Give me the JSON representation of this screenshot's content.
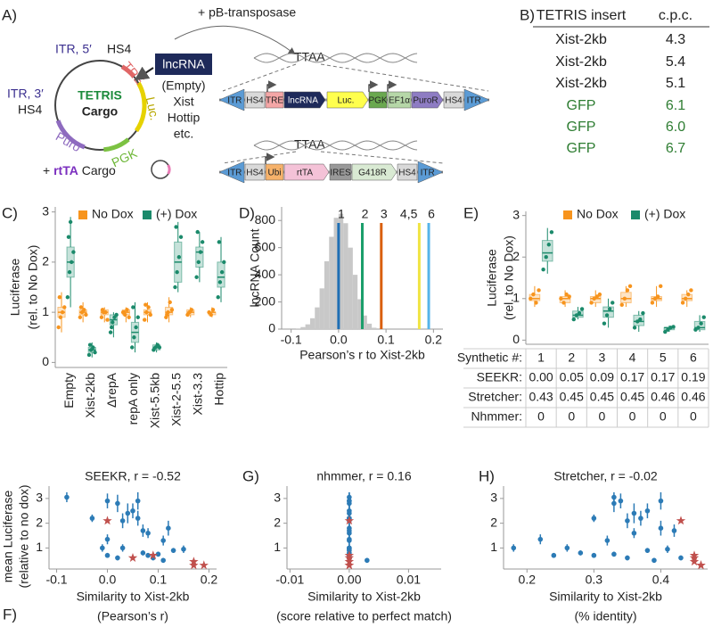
{
  "panel_a": {
    "label": "A)",
    "transposase": "+ pB-transposase",
    "plasmid": {
      "itr5": "ITR, 5′",
      "hs4_top": "HS4",
      "tre": "TRE",
      "tetris": "TETRIS",
      "cargo": "Cargo",
      "luc": "Luc.",
      "pgk": "PGK",
      "puro": "Puro",
      "itr3": "ITR, 3′",
      "hs4_left": "HS4"
    },
    "lncrna": "lncRNA",
    "inserts": [
      "(Empty)",
      "Xist",
      "Hottip",
      "etc."
    ],
    "rtta_cargo": {
      "plus": "+",
      "rtta": "rtTA",
      "cargo": "Cargo"
    },
    "ttaa": [
      "TTAA",
      "TTAA"
    ],
    "construct_1": [
      "ITR",
      "HS4",
      "TRE",
      "lncRNA",
      "Luc.",
      "PGK",
      "EF1α",
      "PuroR",
      "HS4",
      "ITR"
    ],
    "construct_2": [
      "ITR",
      "HS4",
      "Ubi",
      "rtTA",
      "IRES",
      "G418R",
      "HS4",
      "ITR"
    ]
  },
  "panel_b": {
    "label": "B)",
    "header": [
      "TETRIS insert",
      "c.p.c."
    ],
    "rows": [
      [
        "Xist-2kb",
        "4.3"
      ],
      [
        "Xist-2kb",
        "5.4"
      ],
      [
        "Xist-2kb",
        "5.1"
      ],
      [
        "GFP",
        "6.1"
      ],
      [
        "GFP",
        "6.0"
      ],
      [
        "GFP",
        "6.7"
      ]
    ]
  },
  "chart_data": [
    {
      "type": "box",
      "label": "C)",
      "ylabel": [
        "Luciferase",
        "(rel. to No Dox)"
      ],
      "categories": [
        "Empty",
        "Xist-2kb",
        "ΔrepA",
        "repA only",
        "Xist-5.5kb",
        "Xist-2-5.5",
        "Xist-3.3",
        "Hottip"
      ],
      "series": [
        {
          "name": "No Dox",
          "color": "#f7941d",
          "boxes": [
            [
              0.6,
              0.9,
              1.0,
              1.1,
              1.4
            ],
            [
              0.8,
              0.95,
              1.0,
              1.05,
              1.2
            ],
            [
              0.8,
              0.95,
              1.0,
              1.05,
              1.1
            ],
            [
              0.8,
              0.95,
              1.0,
              1.05,
              1.1
            ],
            [
              0.8,
              0.95,
              1.0,
              1.05,
              1.2
            ],
            [
              0.8,
              0.95,
              1.0,
              1.1,
              1.3
            ],
            [
              0.9,
              0.95,
              1.0,
              1.05,
              1.1
            ],
            [
              0.9,
              0.95,
              1.0,
              1.0,
              1.1
            ]
          ],
          "points": [
            [
              0.7,
              0.9,
              1.0,
              1.1,
              1.3
            ],
            [
              0.9,
              1.0,
              1.05,
              0.95,
              1.1
            ],
            [
              0.9,
              1.0,
              1.0,
              0.85,
              1.05
            ],
            [
              1.0,
              0.95,
              1.05,
              0.9,
              1.0
            ],
            [
              0.85,
              1.0,
              1.1,
              0.95,
              1.15
            ],
            [
              0.9,
              1.0,
              1.2,
              1.05,
              0.95
            ],
            [
              0.95,
              1.0,
              1.05
            ],
            [
              1.0,
              0.95,
              1.05
            ]
          ]
        },
        {
          "name": "(+) Dox",
          "color": "#1b8a6b",
          "boxes": [
            [
              1.1,
              1.7,
              2.0,
              2.3,
              2.9
            ],
            [
              0.1,
              0.2,
              0.25,
              0.3,
              0.4
            ],
            [
              0.5,
              0.75,
              0.85,
              0.95,
              1.0
            ],
            [
              0.2,
              0.4,
              0.6,
              0.8,
              1.2
            ],
            [
              0.2,
              0.25,
              0.3,
              0.35,
              0.4
            ],
            [
              1.4,
              1.6,
              2.0,
              2.4,
              2.8
            ],
            [
              1.6,
              1.9,
              2.2,
              2.3,
              2.6
            ],
            [
              1.2,
              1.5,
              1.7,
              2.0,
              2.5
            ]
          ],
          "points": [
            [
              1.3,
              1.8,
              2.0,
              2.2,
              2.5,
              2.8
            ],
            [
              0.15,
              0.25,
              0.3,
              0.2,
              0.35
            ],
            [
              0.6,
              0.8,
              0.9,
              0.95,
              0.7
            ],
            [
              0.3,
              0.5,
              0.7,
              0.9,
              1.1
            ],
            [
              0.25,
              0.3,
              0.35,
              0.3
            ],
            [
              1.5,
              1.8,
              2.1,
              2.5,
              2.7
            ],
            [
              1.7,
              2.0,
              2.2,
              2.4,
              2.6
            ],
            [
              1.3,
              1.6,
              1.8,
              2.0,
              2.4
            ]
          ]
        }
      ],
      "ylim": [
        -0.1,
        3.1
      ],
      "yticks": [
        0,
        1,
        2,
        3
      ]
    },
    {
      "type": "histogram",
      "label": "D)",
      "ylabel": "lncRNA Count",
      "xlabel": "Pearson’s r to Xist-2kb",
      "bins": [
        -0.09,
        -0.08,
        -0.07,
        -0.06,
        -0.05,
        -0.04,
        -0.03,
        -0.02,
        -0.01,
        0.0,
        0.01,
        0.02,
        0.03,
        0.04,
        0.05,
        0.06,
        0.07,
        0.08
      ],
      "counts": [
        5,
        15,
        35,
        80,
        160,
        300,
        500,
        680,
        820,
        850,
        780,
        600,
        400,
        220,
        100,
        40,
        10
      ],
      "color": "#c8c8c8",
      "markers": {
        "x": [
          0.0,
          0.05,
          0.09,
          0.17,
          0.19
        ],
        "labels": [
          "1",
          "2",
          "3",
          "4,5",
          "6"
        ],
        "colors": [
          "#1f6fb4",
          "#1b9e6b",
          "#d95f0e",
          "#f0e442",
          "#56b4e9"
        ]
      },
      "xlim": [
        -0.12,
        0.22
      ],
      "ylim": [
        0,
        900
      ],
      "xticks": [
        -0.1,
        {
          "value": 0.0,
          "label": "0.0"
        },
        0.1,
        0.2
      ],
      "yticks": [
        0,
        200,
        400,
        600,
        800
      ]
    },
    {
      "type": "box",
      "label": "E)",
      "ylabel": [
        "Luciferase",
        "(rel. to No Dox)"
      ],
      "categories": [
        "1",
        "2",
        "3",
        "4",
        "5",
        "6"
      ],
      "series": [
        {
          "name": "No Dox",
          "color": "#f7941d",
          "boxes": [
            [
              0.8,
              0.95,
              1.0,
              1.1,
              1.3
            ],
            [
              0.8,
              0.9,
              1.0,
              1.05,
              1.2
            ],
            [
              0.8,
              0.9,
              1.0,
              1.05,
              1.2
            ],
            [
              0.8,
              0.9,
              1.0,
              1.15,
              1.3
            ],
            [
              0.8,
              0.95,
              1.0,
              1.05,
              1.3
            ],
            [
              0.8,
              0.95,
              1.0,
              1.1,
              1.2
            ]
          ],
          "points": [
            [
              1.0,
              1.1,
              0.9,
              1.2
            ],
            [
              1.0,
              0.9,
              1.1,
              1.05
            ],
            [
              0.9,
              1.0,
              1.05,
              1.1
            ],
            [
              0.85,
              1.0,
              1.2,
              1.3
            ],
            [
              0.9,
              1.0,
              1.05,
              1.3
            ],
            [
              0.9,
              1.0,
              1.1,
              1.2
            ]
          ]
        },
        {
          "name": "(+) Dox",
          "color": "#1b8a6b",
          "boxes": [
            [
              1.6,
              1.9,
              2.1,
              2.4,
              2.7
            ],
            [
              0.5,
              0.55,
              0.6,
              0.7,
              0.8
            ],
            [
              0.3,
              0.55,
              0.7,
              0.8,
              1.0
            ],
            [
              0.2,
              0.35,
              0.45,
              0.6,
              0.7
            ],
            [
              0.2,
              0.25,
              0.3,
              0.3,
              0.35
            ],
            [
              0.2,
              0.25,
              0.3,
              0.45,
              0.6
            ]
          ],
          "points": [
            [
              1.7,
              2.0,
              2.3,
              2.6
            ],
            [
              0.5,
              0.6,
              0.65,
              0.75
            ],
            [
              0.4,
              0.6,
              0.75,
              0.9
            ],
            [
              0.3,
              0.45,
              0.5,
              0.65
            ],
            [
              0.2,
              0.25,
              0.3,
              0.32
            ],
            [
              0.25,
              0.3,
              0.4,
              0.55
            ]
          ]
        }
      ],
      "table": {
        "label": "Synthetic #:",
        "rows": [
          {
            "label": "SEEKR:",
            "values": [
              "0.00",
              "0.05",
              "0.09",
              "0.17",
              "0.17",
              "0.19"
            ]
          },
          {
            "label": "Stretcher:",
            "values": [
              "0.43",
              "0.45",
              "0.45",
              "0.45",
              "0.46",
              "0.46"
            ]
          },
          {
            "label": "Nhmmer:",
            "values": [
              "0",
              "0",
              "0",
              "0",
              "0",
              "0"
            ]
          }
        ]
      },
      "ylim": [
        -0.1,
        3.1
      ],
      "yticks": [
        0,
        1,
        2,
        3
      ]
    },
    {
      "type": "scatter",
      "label": "F)",
      "title": "SEEKR, r = -0.52",
      "ylabel": [
        "mean Luciferase",
        "(relative to no dox)"
      ],
      "xlabel": [
        "Similarity to Xist-2kb",
        "(Pearson’s r)"
      ],
      "x": [
        -0.08,
        -0.03,
        0.0,
        0.02,
        0.03,
        0.04,
        0.05,
        0.06,
        0.06,
        0.07,
        0.08,
        0.12,
        0.11,
        0.0,
        -0.01,
        0.03,
        0.07,
        0.08,
        0.1,
        0.13,
        0.15,
        0.02,
        0.09,
        0.0,
        0.11
      ],
      "y": [
        3.05,
        2.2,
        2.9,
        2.8,
        2.1,
        2.4,
        2.5,
        2.9,
        2.2,
        1.7,
        1.6,
        1.8,
        1.3,
        1.35,
        1.0,
        1.0,
        0.8,
        0.7,
        0.75,
        0.9,
        0.95,
        0.6,
        0.6,
        0.7,
        0.5
      ],
      "errors": [
        0.2,
        0.15,
        0.3,
        0.35,
        0.3,
        0.4,
        0.3,
        0.35,
        0.3,
        0.25,
        0.2,
        0.3,
        0.2,
        0.2,
        0.15,
        0.15,
        0.1,
        0.1,
        0.1,
        0.1,
        0.15,
        0.1,
        0.1,
        0.1,
        0.1
      ],
      "color": "#2c7bb6",
      "highlight": {
        "x": [
          0.0,
          0.05,
          0.09,
          0.17,
          0.17,
          0.19
        ],
        "y": [
          2.1,
          0.6,
          0.7,
          0.45,
          0.3,
          0.3
        ],
        "color": "#c0504d"
      },
      "xlim": [
        -0.115,
        0.215
      ],
      "ylim": [
        0.15,
        3.5
      ],
      "xticks": [
        -0.1,
        {
          "value": 0.0,
          "label": "0.0"
        },
        0.1,
        0.2
      ],
      "yticks": [
        1,
        2,
        3
      ]
    },
    {
      "type": "scatter",
      "label": "G)",
      "title": "nhmmer, r = 0.16",
      "xlabel": [
        "Similarity to Xist-2kb",
        "(score relative to perfect match)"
      ],
      "x": [
        0,
        0,
        0,
        0,
        0,
        0,
        0,
        0,
        0,
        0,
        0,
        0,
        0,
        0,
        0,
        0,
        0,
        0,
        0,
        0,
        0,
        0,
        0,
        0,
        0.003
      ],
      "y": [
        3.05,
        2.2,
        2.9,
        2.8,
        2.1,
        2.4,
        2.5,
        2.9,
        2.2,
        1.7,
        1.6,
        1.8,
        1.3,
        1.35,
        1.0,
        1.0,
        0.8,
        0.7,
        0.75,
        0.9,
        0.95,
        0.6,
        0.6,
        0.7,
        0.5
      ],
      "errors": [
        0.2,
        0.15,
        0.3,
        0.35,
        0.3,
        0.4,
        0.3,
        0.35,
        0.3,
        0.25,
        0.2,
        0.3,
        0.2,
        0.2,
        0.15,
        0.15,
        0.1,
        0.1,
        0.1,
        0.1,
        0.15,
        0.1,
        0.1,
        0.1,
        0.1
      ],
      "color": "#2c7bb6",
      "highlight": {
        "x": [
          0,
          0,
          0,
          0,
          0,
          0
        ],
        "y": [
          2.1,
          0.6,
          0.7,
          0.45,
          0.3,
          0.3
        ],
        "color": "#c0504d"
      },
      "xlim": [
        -0.0105,
        0.0155
      ],
      "ylim": [
        0.15,
        3.5
      ],
      "xticks": [
        -0.01,
        {
          "value": 0,
          "label": "0.00"
        },
        0.01
      ],
      "yticks": [
        1,
        2,
        3
      ]
    },
    {
      "type": "scatter",
      "label": "H)",
      "title": "Stretcher, r = -0.02",
      "xlabel": [
        "Similarity to Xist-2kb",
        "(% identity)"
      ],
      "x": [
        0.33,
        0.3,
        0.34,
        0.33,
        0.35,
        0.36,
        0.38,
        0.4,
        0.37,
        0.42,
        0.36,
        0.4,
        0.32,
        0.22,
        0.18,
        0.26,
        0.28,
        0.3,
        0.33,
        0.38,
        0.41,
        0.35,
        0.43,
        0.24,
        0.39
      ],
      "y": [
        3.05,
        2.2,
        2.9,
        2.8,
        2.1,
        2.4,
        2.5,
        2.9,
        2.2,
        1.7,
        1.6,
        1.8,
        1.3,
        1.35,
        1.0,
        1.0,
        0.8,
        0.7,
        0.75,
        0.9,
        0.95,
        0.6,
        0.6,
        0.7,
        0.5
      ],
      "errors": [
        0.2,
        0.15,
        0.3,
        0.35,
        0.3,
        0.4,
        0.3,
        0.35,
        0.3,
        0.25,
        0.2,
        0.3,
        0.2,
        0.2,
        0.15,
        0.15,
        0.1,
        0.1,
        0.1,
        0.1,
        0.15,
        0.1,
        0.1,
        0.1,
        0.1
      ],
      "color": "#2c7bb6",
      "highlight": {
        "x": [
          0.43,
          0.45,
          0.45,
          0.45,
          0.46,
          0.46
        ],
        "y": [
          2.1,
          0.6,
          0.7,
          0.45,
          0.3,
          0.3
        ],
        "color": "#c0504d"
      },
      "xlim": [
        0.165,
        0.47
      ],
      "ylim": [
        0.15,
        3.5
      ],
      "xticks": [
        0.2,
        0.3,
        0.4
      ],
      "yticks": [
        1,
        2,
        3
      ]
    }
  ]
}
